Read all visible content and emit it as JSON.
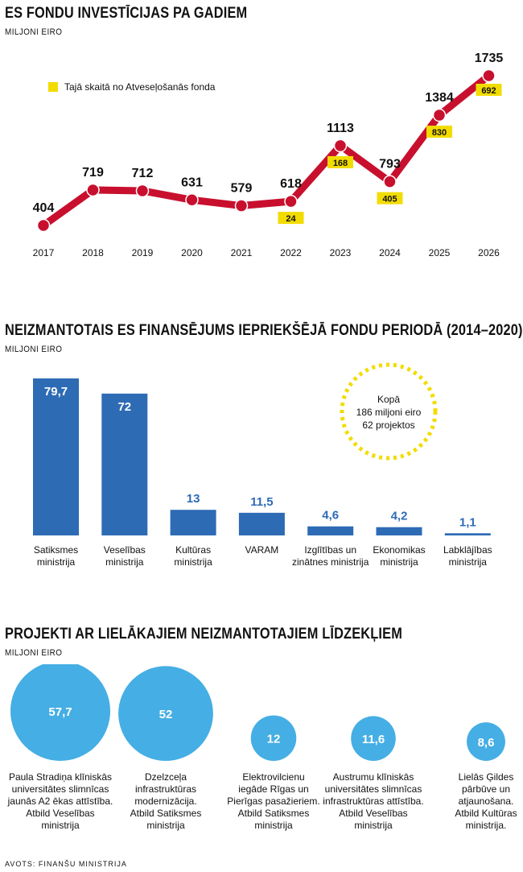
{
  "sections": {
    "s1": {
      "title": "ES FONDU INVESTĪCIJAS PA GADIEM",
      "subtitle": "MILJONI EIRO"
    },
    "s2": {
      "title": "NEIZMANTOTAIS ES FINANSĒJUMS IEPRIEKŠĒJĀ FONDU PERIODĀ (2014–2020)",
      "subtitle": "MILJONI EIRO"
    },
    "s3": {
      "title": "PROJEKTI AR LIELĀKAJIEM NEIZMANTOTAJIEM LĪDZEKĻIEM",
      "subtitle": "MILJONI EIRO"
    }
  },
  "source": "AVOTS: FINANŠU MINISTRIJA",
  "colors": {
    "line": "#c8102e",
    "highlight": "#f2dc00",
    "bar": "#2e6bb5",
    "bubble": "#45aee4"
  },
  "chart_data": [
    {
      "type": "line",
      "x": [
        "2017",
        "2018",
        "2019",
        "2020",
        "2021",
        "2022",
        "2023",
        "2024",
        "2025",
        "2026"
      ],
      "series": [
        {
          "values": [
            404,
            719,
            712,
            631,
            579,
            618,
            1113,
            793,
            1384,
            1735
          ]
        }
      ],
      "recovery_fund": [
        null,
        null,
        null,
        null,
        null,
        24,
        168,
        405,
        830,
        692
      ],
      "legend": "Tajā skaitā no Atveseļošanās fonda",
      "legend_position": "top-left",
      "grid": false
    },
    {
      "type": "bar",
      "categories": [
        [
          "Satiksmes",
          "ministrija"
        ],
        [
          "Veselības",
          "ministrija"
        ],
        [
          "Kultūras",
          "ministrija"
        ],
        [
          "VARAM"
        ],
        [
          "Izglītības un",
          "zinātnes ministrija"
        ],
        [
          "Ekonomikas",
          "ministrija"
        ],
        [
          "Labklājības",
          "ministrija"
        ]
      ],
      "values": [
        79.7,
        72,
        13,
        11.5,
        4.6,
        4.2,
        1.1
      ],
      "value_labels": [
        "79,7",
        "72",
        "13",
        "11,5",
        "4,6",
        "4,2",
        "1,1"
      ],
      "annotation": [
        "Kopā",
        "186 miljoni eiro",
        "62 projektos"
      ],
      "grid": false
    },
    {
      "type": "bubble",
      "values": [
        57.7,
        52,
        12,
        11.6,
        8.6
      ],
      "value_labels": [
        "57,7",
        "52",
        "12",
        "11,6",
        "8,6"
      ],
      "labels": [
        [
          "Paula Stradiņa klīniskās",
          "universitātes slimnīcas",
          "jaunās A2 ēkas attīstība.",
          "Atbild Veselības",
          "ministrija"
        ],
        [
          "Dzelzceļa",
          "infrastruktūras",
          "modernizācija.",
          "Atbild Satiksmes",
          "ministrija"
        ],
        [
          "Elektrovilcienu",
          "iegāde Rīgas un",
          "Pierīgas pasažieriem.",
          "Atbild Satiksmes",
          "ministrija"
        ],
        [
          "Austrumu klīniskās",
          "universitātes slimnīcas",
          "infrastruktūras attīstība.",
          "Atbild Veselības",
          "ministrija"
        ],
        [
          "Lielās Ģildes",
          "pārbūve un",
          "atjaunošana.",
          "Atbild Kultūras",
          "ministrija."
        ]
      ]
    }
  ]
}
